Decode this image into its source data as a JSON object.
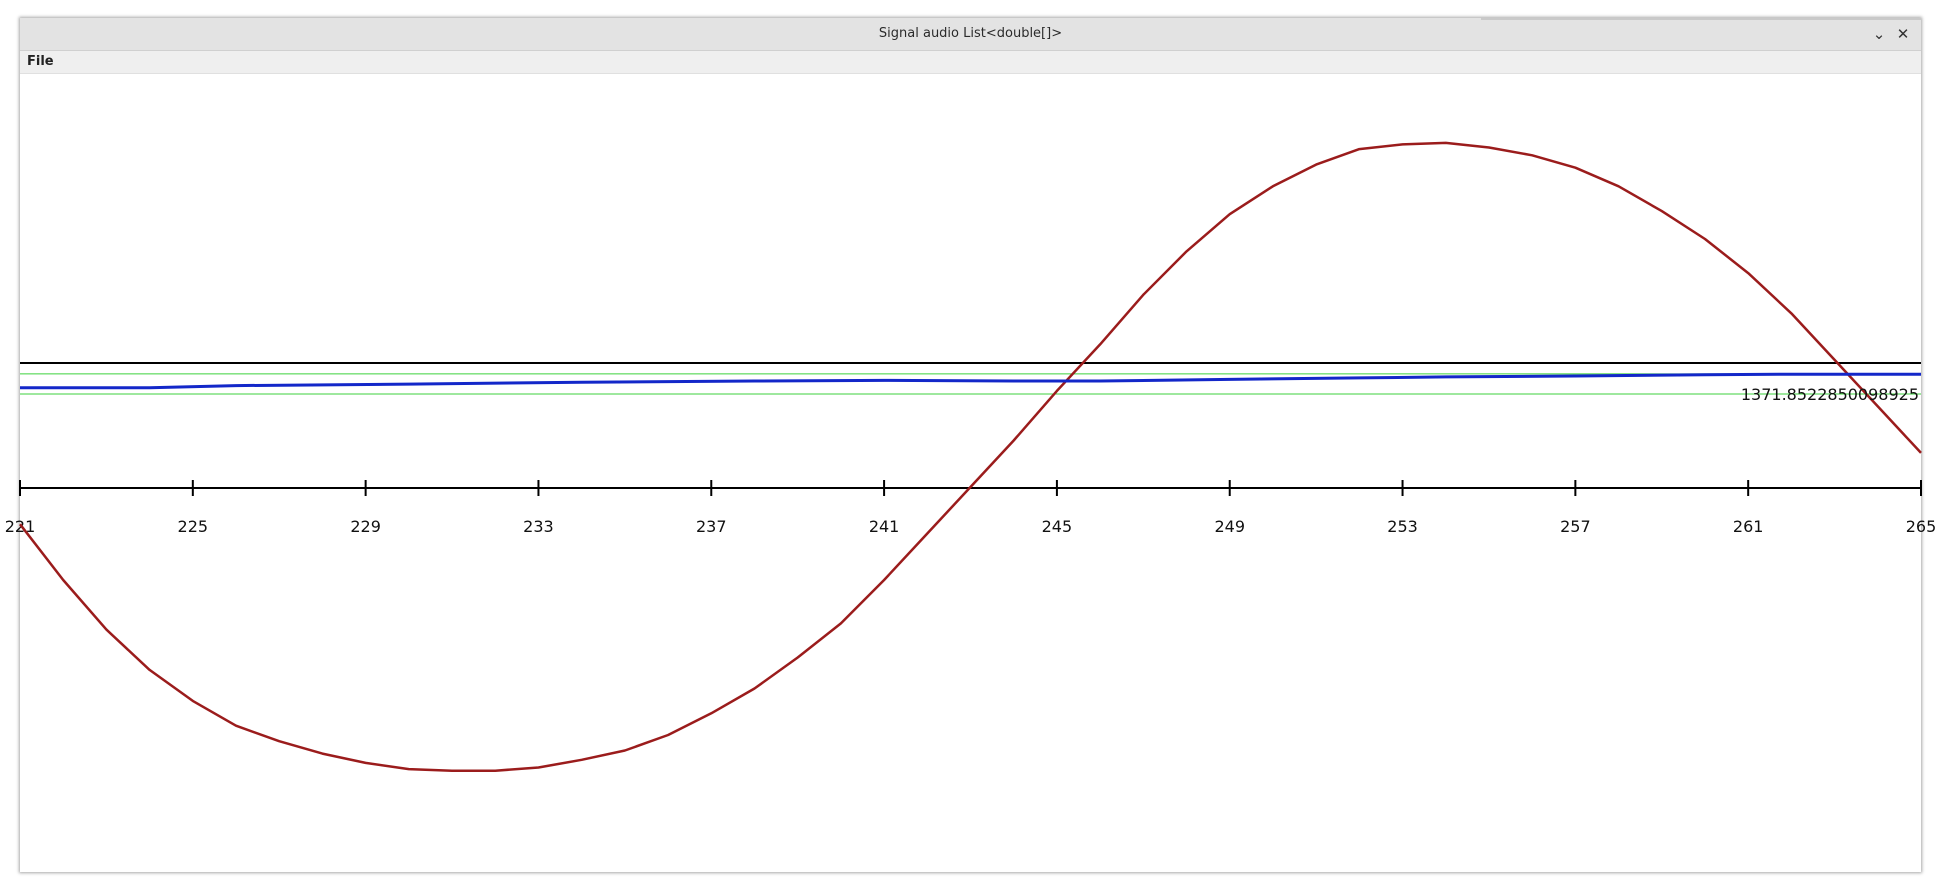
{
  "window": {
    "title": "Signal audio List<double[]>",
    "minimize_glyph": "⌄",
    "close_glyph": "✕"
  },
  "menu": {
    "file_label": "File"
  },
  "chart_data": {
    "type": "line",
    "x_ticks": [
      "221",
      "225",
      "229",
      "233",
      "237",
      "241",
      "245",
      "249",
      "253",
      "257",
      "261",
      "265"
    ],
    "value_label": "1371.8522850098925",
    "colors": {
      "sine": "#9b1c1c",
      "signal": "#1327c9",
      "reference": "#000000",
      "band": "#3cd23c",
      "axis": "#000000"
    },
    "series": [
      {
        "color_key": "sine",
        "x": [
          221,
          222,
          223,
          224,
          225,
          226,
          227,
          228,
          229,
          230,
          231,
          232,
          233,
          234,
          235,
          236,
          237,
          238,
          239,
          240,
          241,
          242,
          243,
          244,
          245,
          246,
          247,
          248,
          249,
          250,
          251,
          252,
          253,
          254,
          255,
          256,
          257,
          258,
          259,
          260,
          261,
          262,
          263,
          264,
          265
        ],
        "y": [
          -0.42,
          -0.6,
          -0.76,
          -0.89,
          -0.99,
          -1.07,
          -1.12,
          -1.16,
          -1.19,
          -1.21,
          -1.215,
          -1.215,
          -1.205,
          -1.18,
          -1.15,
          -1.1,
          -1.03,
          -0.95,
          -0.85,
          -0.74,
          -0.6,
          -0.45,
          -0.3,
          -0.15,
          0.01,
          0.16,
          0.32,
          0.46,
          0.58,
          0.67,
          0.74,
          0.79,
          0.805,
          0.81,
          0.795,
          0.77,
          0.73,
          0.67,
          0.59,
          0.5,
          0.39,
          0.26,
          0.11,
          -0.04,
          -0.19
        ]
      },
      {
        "color_key": "signal",
        "x": [
          221,
          224,
          226,
          230,
          234,
          238,
          241,
          244,
          246,
          249,
          252,
          254,
          257,
          260,
          262,
          265
        ],
        "y": [
          0.02,
          0.02,
          0.027,
          0.032,
          0.038,
          0.042,
          0.044,
          0.042,
          0.042,
          0.047,
          0.052,
          0.055,
          0.058,
          0.062,
          0.064,
          0.064
        ]
      }
    ],
    "reference_level": 0.1,
    "band": [
      0.065,
      0.0
    ]
  }
}
